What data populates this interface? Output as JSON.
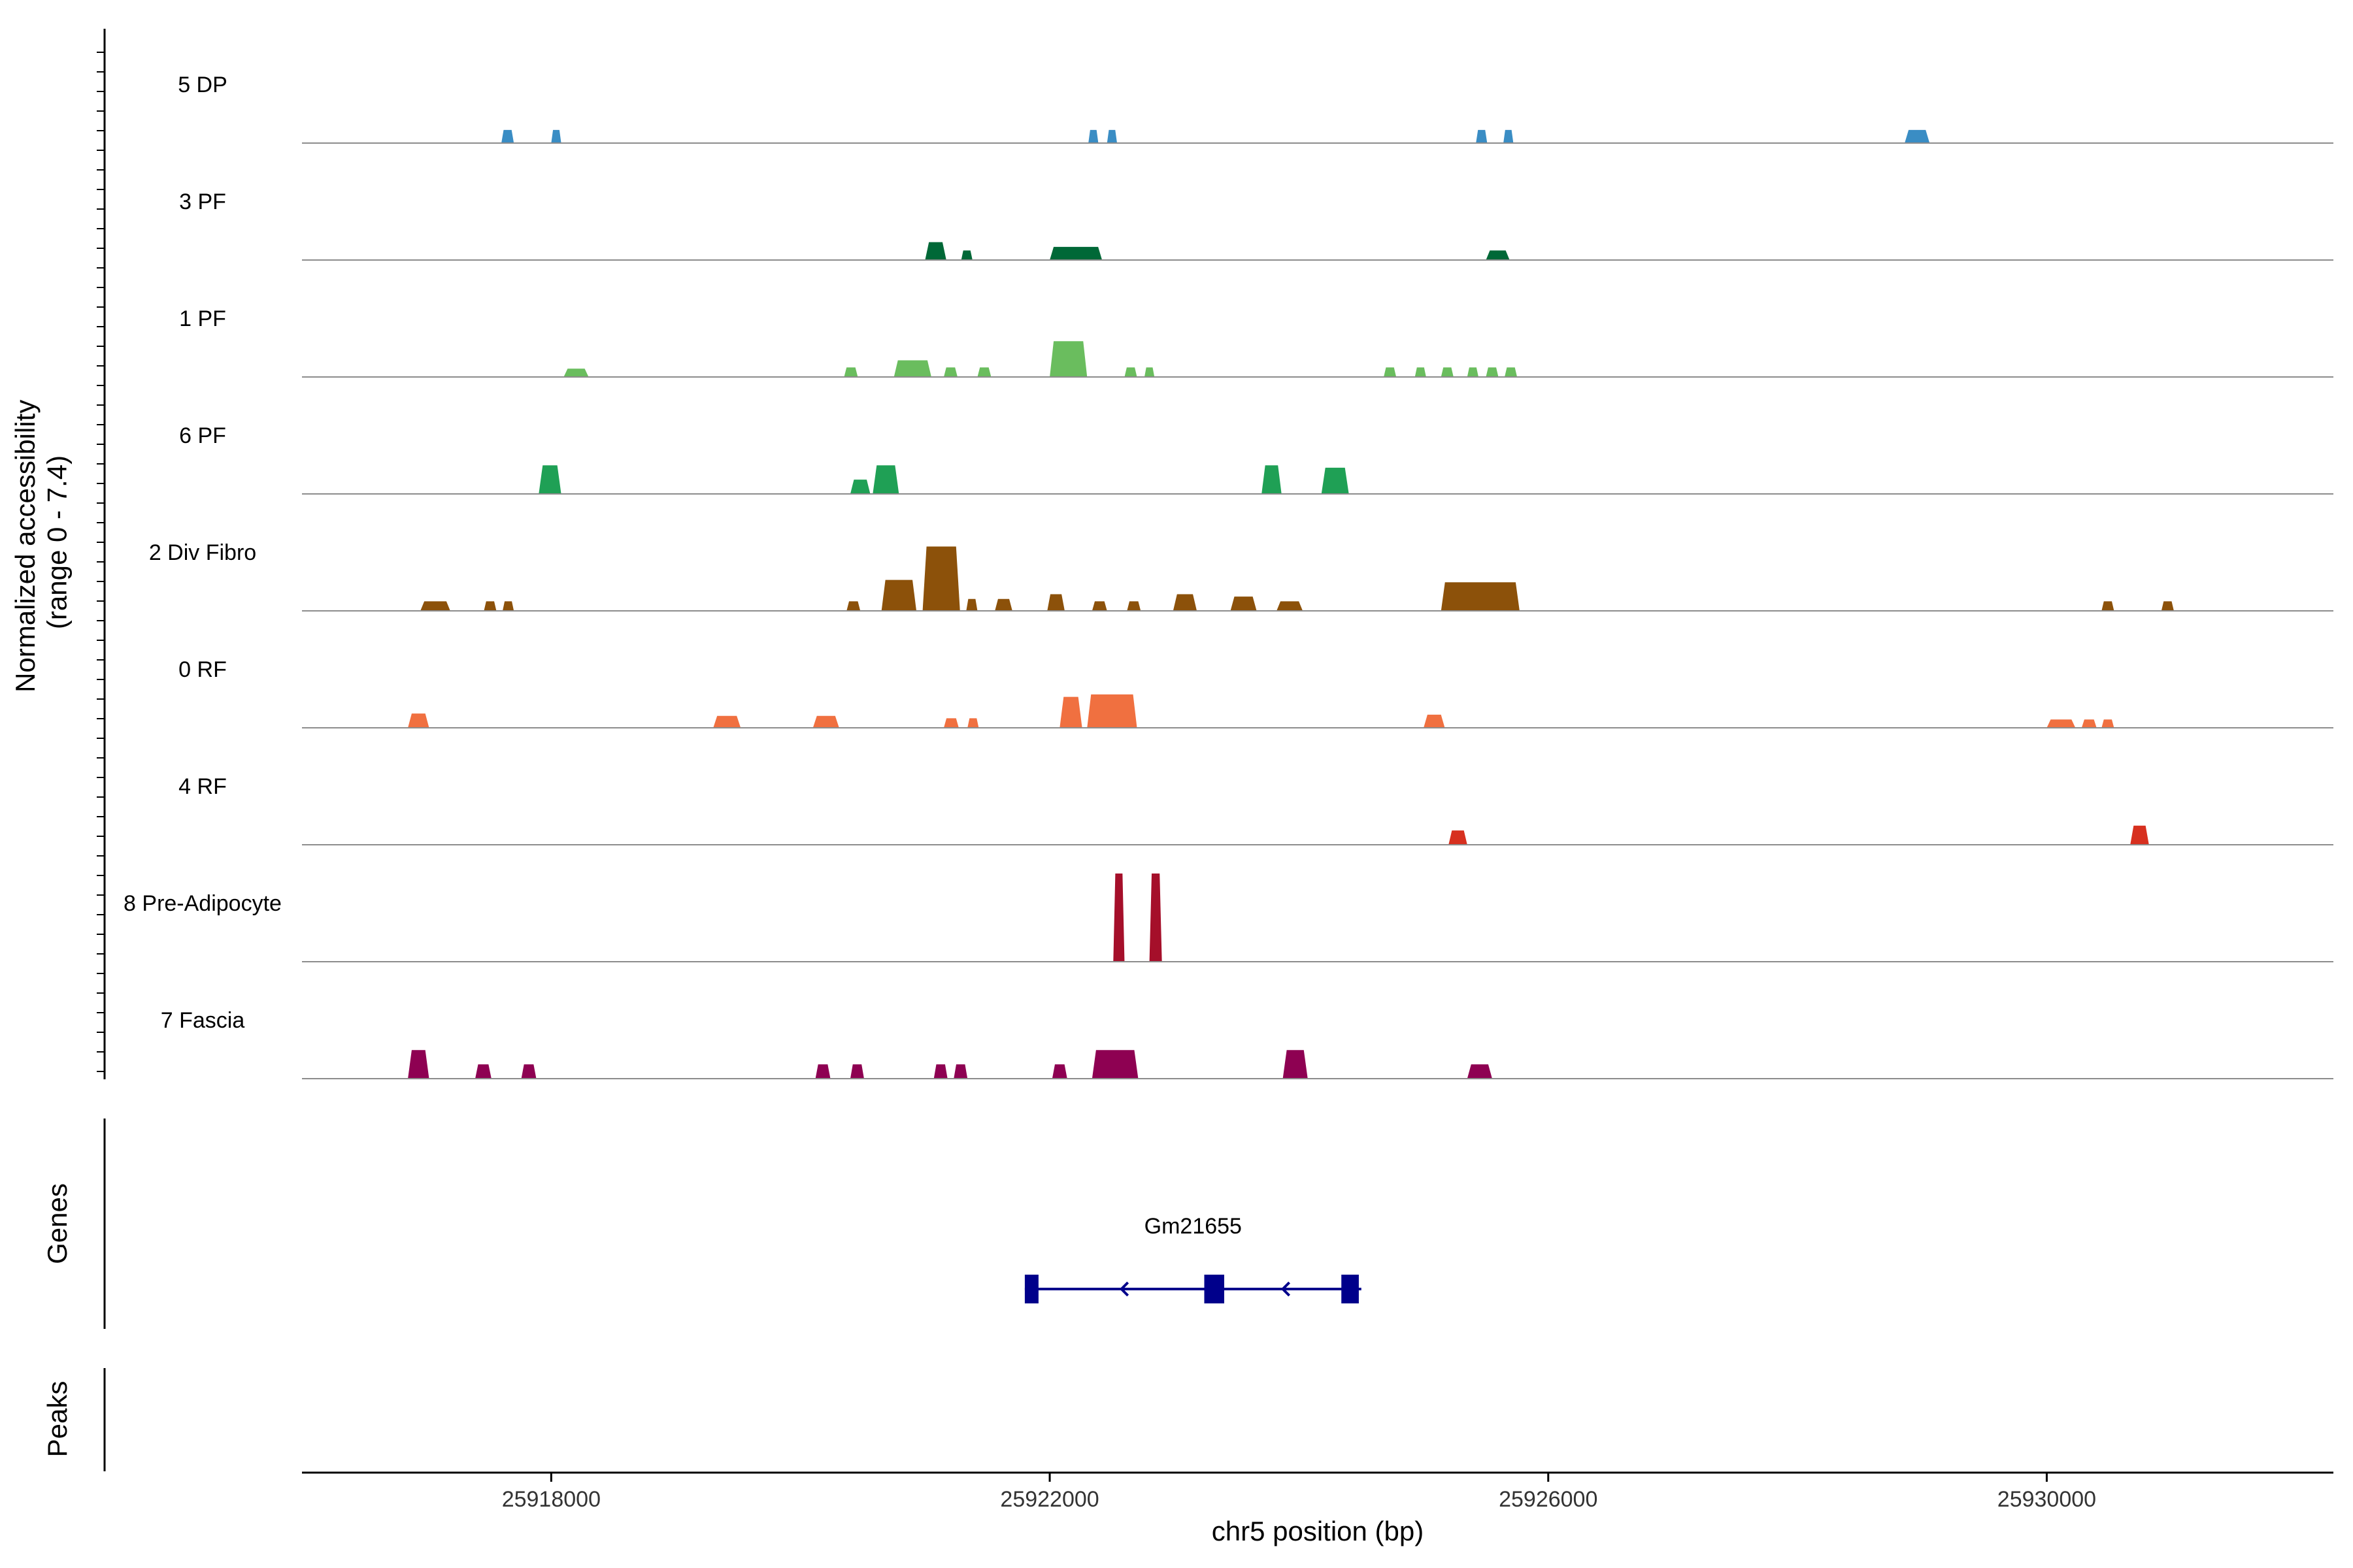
{
  "chart_data": {
    "type": "area",
    "y_axis_title": [
      "Normalized accessibility",
      "(range 0 - 7.4)"
    ],
    "ylim": [
      0,
      7.4
    ],
    "x_axis_title": "chr5 position (bp)",
    "xlim": [
      25916000,
      25932300
    ],
    "x_ticks": [
      25918000,
      25922000,
      25926000,
      25930000
    ],
    "x_tick_labels": [
      "25918000",
      "25922000",
      "25926000",
      "25930000"
    ],
    "genes_title": "Genes",
    "peaks_title": "Peaks",
    "gene": {
      "name": "Gm21655",
      "start": 25921800,
      "end": 25924500,
      "strand": "-",
      "exons": [
        [
          25921800,
          25921910
        ],
        [
          25923240,
          25923400
        ],
        [
          25924340,
          25924480
        ]
      ]
    },
    "tracks": [
      {
        "name": "5 DP",
        "color": "#3A8DC4",
        "peaks": [
          [
            25917600,
            25917700,
            1.1
          ],
          [
            25918000,
            25918080,
            1.1
          ],
          [
            25922310,
            25922390,
            1.1
          ],
          [
            25922460,
            25922540,
            1.1
          ],
          [
            25925420,
            25925510,
            1.1
          ],
          [
            25925640,
            25925720,
            1.1
          ],
          [
            25928860,
            25929060,
            1.1
          ]
        ]
      },
      {
        "name": "3 PF",
        "color": "#006837",
        "peaks": [
          [
            25921000,
            25921170,
            1.5
          ],
          [
            25921290,
            25921380,
            0.8
          ],
          [
            25922000,
            25922420,
            1.1
          ],
          [
            25925500,
            25925690,
            0.8
          ]
        ]
      },
      {
        "name": "1 PF",
        "color": "#6ABD5E",
        "peaks": [
          [
            25918100,
            25918300,
            0.7
          ],
          [
            25920350,
            25920460,
            0.8
          ],
          [
            25920750,
            25921050,
            1.4
          ],
          [
            25921150,
            25921260,
            0.8
          ],
          [
            25921420,
            25921530,
            0.8
          ],
          [
            25922000,
            25922300,
            3.0
          ],
          [
            25922600,
            25922700,
            0.8
          ],
          [
            25922760,
            25922840,
            0.8
          ],
          [
            25924680,
            25924780,
            0.8
          ],
          [
            25924930,
            25925020,
            0.8
          ],
          [
            25925140,
            25925240,
            0.8
          ],
          [
            25925350,
            25925440,
            0.8
          ],
          [
            25925500,
            25925600,
            0.8
          ],
          [
            25925650,
            25925750,
            0.8
          ]
        ]
      },
      {
        "name": "6 PF",
        "color": "#1FA055",
        "peaks": [
          [
            25917900,
            25918080,
            2.4
          ],
          [
            25920400,
            25920560,
            1.2
          ],
          [
            25920580,
            25920790,
            2.4
          ],
          [
            25923700,
            25923860,
            2.4
          ],
          [
            25924180,
            25924400,
            2.2
          ]
        ]
      },
      {
        "name": "2 Div Fibro",
        "color": "#8C510A",
        "peaks": [
          [
            25916950,
            25917190,
            0.8
          ],
          [
            25917460,
            25917560,
            0.8
          ],
          [
            25917610,
            25917700,
            0.8
          ],
          [
            25920370,
            25920480,
            0.8
          ],
          [
            25920650,
            25920930,
            2.6
          ],
          [
            25920980,
            25921280,
            5.4
          ],
          [
            25921330,
            25921420,
            1.0
          ],
          [
            25921560,
            25921700,
            1.0
          ],
          [
            25921980,
            25922120,
            1.4
          ],
          [
            25922340,
            25922460,
            0.8
          ],
          [
            25922620,
            25922730,
            0.8
          ],
          [
            25922990,
            25923180,
            1.4
          ],
          [
            25923450,
            25923660,
            1.2
          ],
          [
            25923820,
            25924030,
            0.8
          ],
          [
            25925140,
            25925770,
            2.4
          ],
          [
            25930440,
            25930540,
            0.8
          ],
          [
            25930920,
            25931020,
            0.8
          ]
        ]
      },
      {
        "name": "0 RF",
        "color": "#F07040",
        "peaks": [
          [
            25916850,
            25917020,
            1.2
          ],
          [
            25919300,
            25919520,
            1.0
          ],
          [
            25920100,
            25920310,
            1.0
          ],
          [
            25921150,
            25921270,
            0.8
          ],
          [
            25921340,
            25921430,
            0.8
          ],
          [
            25922080,
            25922260,
            2.6
          ],
          [
            25922300,
            25922700,
            2.8
          ],
          [
            25925000,
            25925170,
            1.1
          ],
          [
            25930000,
            25930230,
            0.7
          ],
          [
            25930280,
            25930400,
            0.7
          ],
          [
            25930440,
            25930540,
            0.7
          ]
        ]
      },
      {
        "name": "4 RF",
        "color": "#D7301F",
        "peaks": [
          [
            25925200,
            25925350,
            1.2
          ],
          [
            25930670,
            25930820,
            1.6
          ]
        ]
      },
      {
        "name": "8 Pre-Adipocyte",
        "color": "#A50F2A",
        "peaks": [
          [
            25922510,
            25922600,
            7.4
          ],
          [
            25922800,
            25922900,
            7.4
          ]
        ]
      },
      {
        "name": "7 Fascia",
        "color": "#8E0152",
        "peaks": [
          [
            25916850,
            25917020,
            2.4
          ],
          [
            25917390,
            25917520,
            1.2
          ],
          [
            25917760,
            25917880,
            1.2
          ],
          [
            25920120,
            25920240,
            1.2
          ],
          [
            25920400,
            25920510,
            1.2
          ],
          [
            25921070,
            25921180,
            1.2
          ],
          [
            25921230,
            25921340,
            1.2
          ],
          [
            25922020,
            25922140,
            1.2
          ],
          [
            25922340,
            25922710,
            2.4
          ],
          [
            25923870,
            25924070,
            2.4
          ],
          [
            25925350,
            25925550,
            1.2
          ]
        ]
      }
    ]
  }
}
